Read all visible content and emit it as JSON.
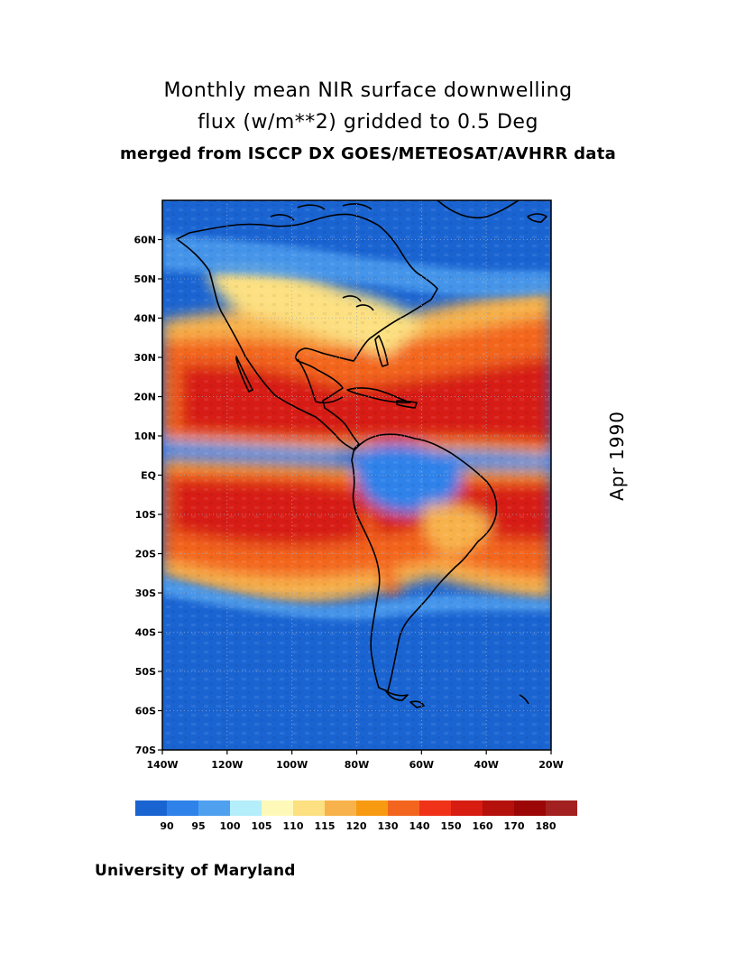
{
  "title": {
    "line1": "Monthly mean NIR surface downwelling",
    "line2": "flux (w/m**2) gridded to 0.5 Deg",
    "line3": "merged from ISCCP DX GOES/METEOSAT/AVHRR data"
  },
  "month_label": "Apr 1990",
  "credit": "University of Maryland",
  "map": {
    "lon_range": [
      -140,
      -20
    ],
    "lat_range": [
      -70,
      70
    ],
    "lat_ticks": [
      "60N",
      "50N",
      "40N",
      "30N",
      "20N",
      "10N",
      "EQ",
      "10S",
      "20S",
      "30S",
      "40S",
      "50S",
      "60S",
      "70S"
    ],
    "lon_ticks": [
      "140W",
      "120W",
      "100W",
      "80W",
      "60W",
      "40W",
      "20W"
    ],
    "gridlines": "dotted"
  },
  "colorbar": {
    "labels": [
      "90",
      "95",
      "100",
      "105",
      "110",
      "115",
      "120",
      "130",
      "140",
      "150",
      "160",
      "170",
      "180"
    ],
    "colors": [
      "#1a64d2",
      "#2f82ea",
      "#50a0f0",
      "#b4eefa",
      "#fff9b9",
      "#fce081",
      "#f8b24c",
      "#f79a12",
      "#f3651e",
      "#ef3218",
      "#d71c12",
      "#b4100c",
      "#9b0606",
      "#a22020"
    ]
  }
}
